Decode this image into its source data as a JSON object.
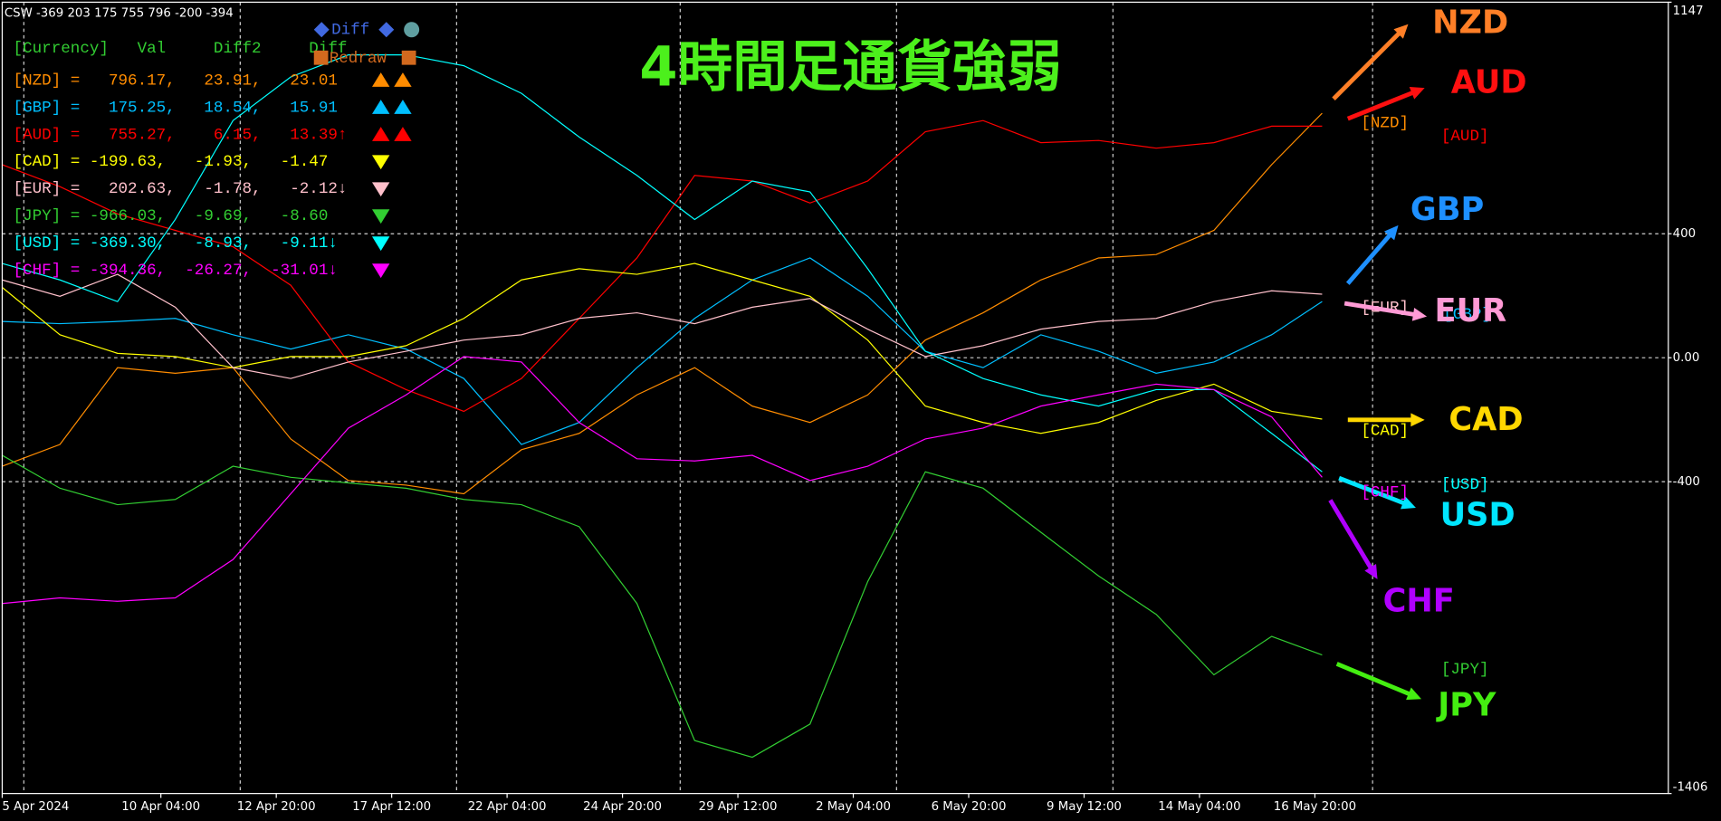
{
  "header": "CSW -369 203 175 755 796 -200 -394",
  "chart_data": {
    "type": "line",
    "title": "4時間足通貨強弱",
    "x": [
      0,
      8,
      16,
      24,
      32,
      40,
      48,
      56,
      64,
      72,
      80,
      88,
      96,
      104,
      112,
      120,
      128,
      136,
      144,
      152,
      160,
      168,
      176,
      183
    ],
    "xlim": [
      0,
      231
    ],
    "xticks": [
      {
        "value": 0,
        "label": "5 Apr 2024"
      },
      {
        "value": 22,
        "label": "10 Apr 04:00"
      },
      {
        "value": 38,
        "label": "12 Apr 20:00"
      },
      {
        "value": 54,
        "label": "17 Apr 12:00"
      },
      {
        "value": 70,
        "label": "22 Apr 04:00"
      },
      {
        "value": 86,
        "label": "24 Apr 20:00"
      },
      {
        "value": 102,
        "label": "29 Apr 12:00"
      },
      {
        "value": 118,
        "label": "2 May 04:00"
      },
      {
        "value": 134,
        "label": "6 May 20:00"
      },
      {
        "value": 150,
        "label": "9 May 12:00"
      },
      {
        "value": 166,
        "label": "14 May 04:00"
      },
      {
        "value": 182,
        "label": "16 May 20:00"
      }
    ],
    "xgrid": [
      3,
      33,
      63,
      94,
      124,
      154,
      190
    ],
    "ylim": [
      -1406,
      1147
    ],
    "yticks": [
      -1406,
      -400,
      {
        "value": 0,
        "label": "0.00"
      },
      400,
      1147
    ],
    "grid": true,
    "series": [
      {
        "name": "NZD",
        "tag": "[NZD]",
        "color": "#ff8c00",
        "label_color": "#ff7f27",
        "values": [
          -350,
          -280,
          -32,
          -50,
          -32,
          -262,
          -396,
          -411,
          -439,
          -297,
          -244,
          -120,
          -32,
          -156,
          -209,
          -120,
          57,
          145,
          251,
          322,
          333,
          411,
          623,
          789
        ]
      },
      {
        "name": "GBP",
        "tag": "[GBP]",
        "color": "#00bfff",
        "label_color": "#1e90ff",
        "values": [
          117,
          110,
          117,
          127,
          74,
          28,
          74,
          28,
          -67,
          -280,
          -209,
          -32,
          127,
          251,
          322,
          198,
          21,
          -32,
          74,
          21,
          -50,
          -14,
          74,
          181
        ]
      },
      {
        "name": "AUD",
        "tag": "[AUD]",
        "color": "#ff0000",
        "label_color": "#ff1010",
        "values": [
          623,
          552,
          464,
          411,
          358,
          234,
          -14,
          -103,
          -173,
          -67,
          127,
          322,
          588,
          570,
          499,
          570,
          729,
          765,
          694,
          701,
          676,
          694,
          747,
          747
        ]
      },
      {
        "name": "CAD",
        "tag": "[CAD]",
        "color": "#ffff00",
        "label_color": "#ffd700",
        "values": [
          227,
          74,
          14,
          4,
          -32,
          4,
          4,
          39,
          127,
          251,
          287,
          269,
          304,
          251,
          198,
          57,
          -156,
          -209,
          -244,
          -209,
          -138,
          -85,
          -173,
          -198
        ]
      },
      {
        "name": "EUR",
        "tag": "[EUR]",
        "color": "#ffc0cb",
        "label_color": "#ff9ad5",
        "values": [
          251,
          198,
          269,
          163,
          -32,
          -67,
          -14,
          21,
          57,
          74,
          127,
          145,
          110,
          163,
          191,
          92,
          4,
          39,
          92,
          117,
          127,
          181,
          216,
          205
        ]
      },
      {
        "name": "JPY",
        "tag": "[JPY]",
        "color": "#32cd32",
        "label_color": "#44ee11",
        "values": [
          -315,
          -421,
          -474,
          -457,
          -350,
          -386,
          -404,
          -421,
          -457,
          -474,
          -545,
          -793,
          -1235,
          -1289,
          -1182,
          -722,
          -368,
          -421,
          -563,
          -704,
          -828,
          -1023,
          -899,
          -959
        ]
      },
      {
        "name": "USD",
        "tag": "[USD]",
        "color": "#00ffff",
        "label_color": "#00e5ff",
        "values": [
          304,
          251,
          181,
          446,
          765,
          906,
          977,
          977,
          942,
          853,
          712,
          588,
          446,
          570,
          535,
          287,
          21,
          -67,
          -120,
          -156,
          -103,
          -103,
          -244,
          -368
        ]
      },
      {
        "name": "CHF",
        "tag": "[CHF]",
        "color": "#ff00ff",
        "label_color": "#b000ff",
        "values": [
          -793,
          -775,
          -786,
          -775,
          -651,
          -439,
          -227,
          -120,
          4,
          -14,
          -209,
          -326,
          -333,
          -315,
          -396,
          -350,
          -262,
          -227,
          -156,
          -120,
          -85,
          -103,
          -191,
          -386
        ]
      }
    ],
    "table": {
      "header": "[Currency]   Val     Diff2     Diff",
      "rows": [
        "[NZD] =   796.17,   23.91,   23.01",
        "[GBP] =   175.25,   18.54,   15.91",
        "[AUD] =   755.27,    6.15,   13.39↑",
        "[CAD] = -199.63,   -1.93,   -1.47",
        "[EUR] =   202.63,   -1.78,   -2.12↓",
        "[JPY] = -966.03,   -9.69,   -8.60",
        "[USD] = -369.30,   -8.93,   -9.11↓",
        "[CHF] = -394.36,  -26.27,  -31.01↓"
      ]
    },
    "buttons": [
      "Diff",
      "Redraw"
    ]
  }
}
